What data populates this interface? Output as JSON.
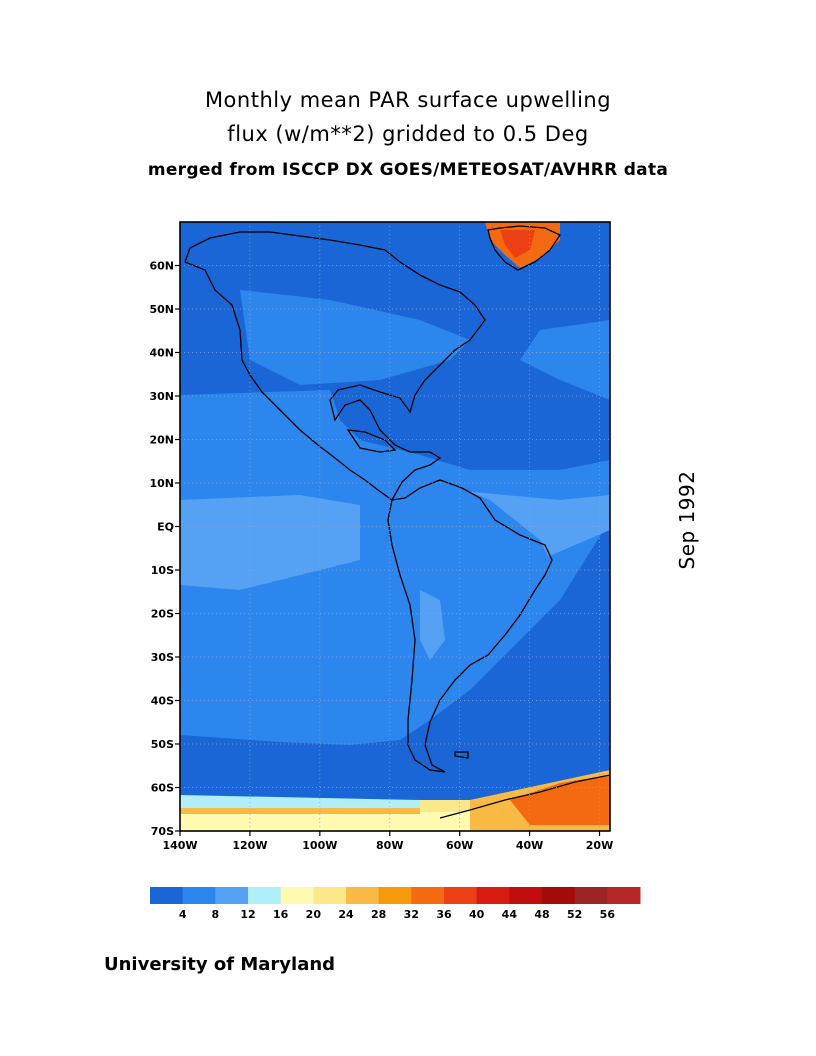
{
  "title": {
    "line1": "Monthly mean PAR surface upwelling",
    "line2": "flux (w/m**2) gridded to 0.5 Deg",
    "line3": "merged from ISCCP DX GOES/METEOSAT/AVHRR data"
  },
  "date_label": "Sep 1992",
  "credit": "University of Maryland",
  "map": {
    "lat_ticks": [
      "60N",
      "50N",
      "40N",
      "30N",
      "20N",
      "10N",
      "EQ",
      "10S",
      "20S",
      "30S",
      "40S",
      "50S",
      "60S",
      "70S"
    ],
    "lon_ticks": [
      "140W",
      "120W",
      "100W",
      "80W",
      "60W",
      "40W",
      "20W"
    ],
    "lat_range": [
      -70,
      70
    ],
    "lon_range": [
      -140,
      -17
    ],
    "grid": "dotted"
  },
  "colorbar": {
    "labels": [
      "4",
      "8",
      "12",
      "16",
      "20",
      "24",
      "28",
      "32",
      "36",
      "40",
      "44",
      "48",
      "52",
      "56"
    ],
    "colors": [
      "#1a66d6",
      "#2d86ee",
      "#55a2f5",
      "#b0eefb",
      "#fefbb0",
      "#fbe88a",
      "#f9ba45",
      "#f59a0a",
      "#f36a10",
      "#ec3f14",
      "#d91c12",
      "#c00d0d",
      "#a30a0a",
      "#9b2424",
      "#b62828"
    ]
  }
}
